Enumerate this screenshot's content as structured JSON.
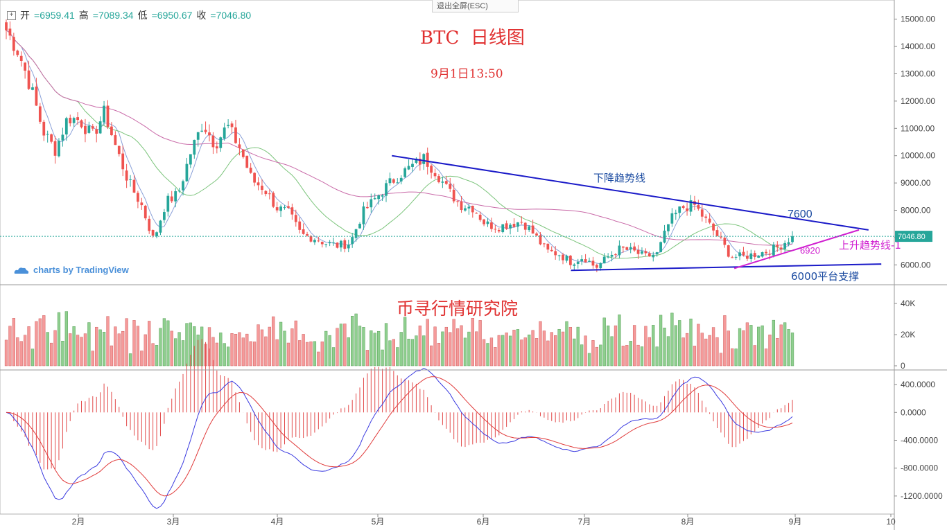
{
  "ohlc": {
    "open_label": "开",
    "open": "6959.41",
    "high_label": "高",
    "high": "7089.34",
    "low_label": "低",
    "low": "6950.67",
    "close_label": "收",
    "close": "7046.80"
  },
  "fullscreen_exit_label": "退出全屏(ESC)",
  "watermark": "charts by TradingView",
  "chart_data": {
    "type": "candlestick",
    "title": "BTC  日线图",
    "subtitle": "9月1日13:50",
    "annotation": "币寻行情研究院",
    "price_axis": {
      "ticks": [
        "15000.00",
        "14000.00",
        "13000.00",
        "12000.00",
        "11000.00",
        "10000.00",
        "9000.00",
        "8000.00",
        "7000.00",
        "6000.00"
      ],
      "range": [
        5450,
        15550
      ],
      "last_price_label": "7046.80",
      "last_price": 7046.8
    },
    "volume_axis": {
      "ticks": [
        "40K",
        "20K",
        "0"
      ],
      "range": [
        0,
        48000
      ]
    },
    "macd_axis": {
      "ticks": [
        "400.0000",
        "0.0000",
        "-400.0000",
        "-800.0000",
        "-1200.0000"
      ],
      "range": [
        -1400,
        550
      ]
    },
    "time_axis": {
      "labels": [
        "2月",
        "3月",
        "4月",
        "5月",
        "6月",
        "7月",
        "8月",
        "9月",
        "10"
      ]
    },
    "lines": [
      {
        "label": "下降趋势线",
        "color": "#1a1ac8",
        "from": [
          "5月5日",
          10000
        ],
        "to": [
          "9月24日",
          7280
        ]
      },
      {
        "label": "6000平台支撑",
        "color": "#1a1ac8",
        "from": [
          "6月27日",
          5800
        ],
        "to": [
          "9月28日",
          6030
        ]
      },
      {
        "label": "上升趋势线-1",
        "color": "#d020d0",
        "from": [
          "8月14日",
          5870
        ],
        "to": [
          "9月21日",
          7280
        ]
      }
    ],
    "level_labels": [
      "7600",
      "6920"
    ],
    "price_series": [
      {
        "month": "1月",
        "values": [
          14600,
          13800,
          12500,
          10900,
          10200,
          11400,
          11300,
          10700,
          11600
        ]
      },
      {
        "month": "2月",
        "values": [
          10200,
          9000,
          8200,
          6900,
          8300,
          8600,
          10100,
          11200,
          10400
        ]
      },
      {
        "month": "3月",
        "values": [
          11100,
          10300,
          9100,
          8800,
          8100,
          7900,
          7100,
          7000,
          6800
        ]
      },
      {
        "month": "4月",
        "values": [
          6700,
          6800,
          7900,
          8400,
          8900,
          9300,
          9600
        ]
      },
      {
        "month": "5月",
        "values": [
          9900,
          9400,
          8700,
          8200,
          8100,
          7500,
          7400
        ]
      },
      {
        "month": "6月",
        "values": [
          7500,
          7600,
          7100,
          6500,
          6400,
          6100,
          6300,
          5900
        ]
      },
      {
        "month": "7月",
        "values": [
          6300,
          6600,
          6500,
          6300,
          6400,
          7600,
          8100,
          8200
        ]
      },
      {
        "month": "8月",
        "values": [
          7600,
          7000,
          6300,
          6300,
          6400,
          6500,
          6700,
          7050
        ]
      }
    ]
  }
}
